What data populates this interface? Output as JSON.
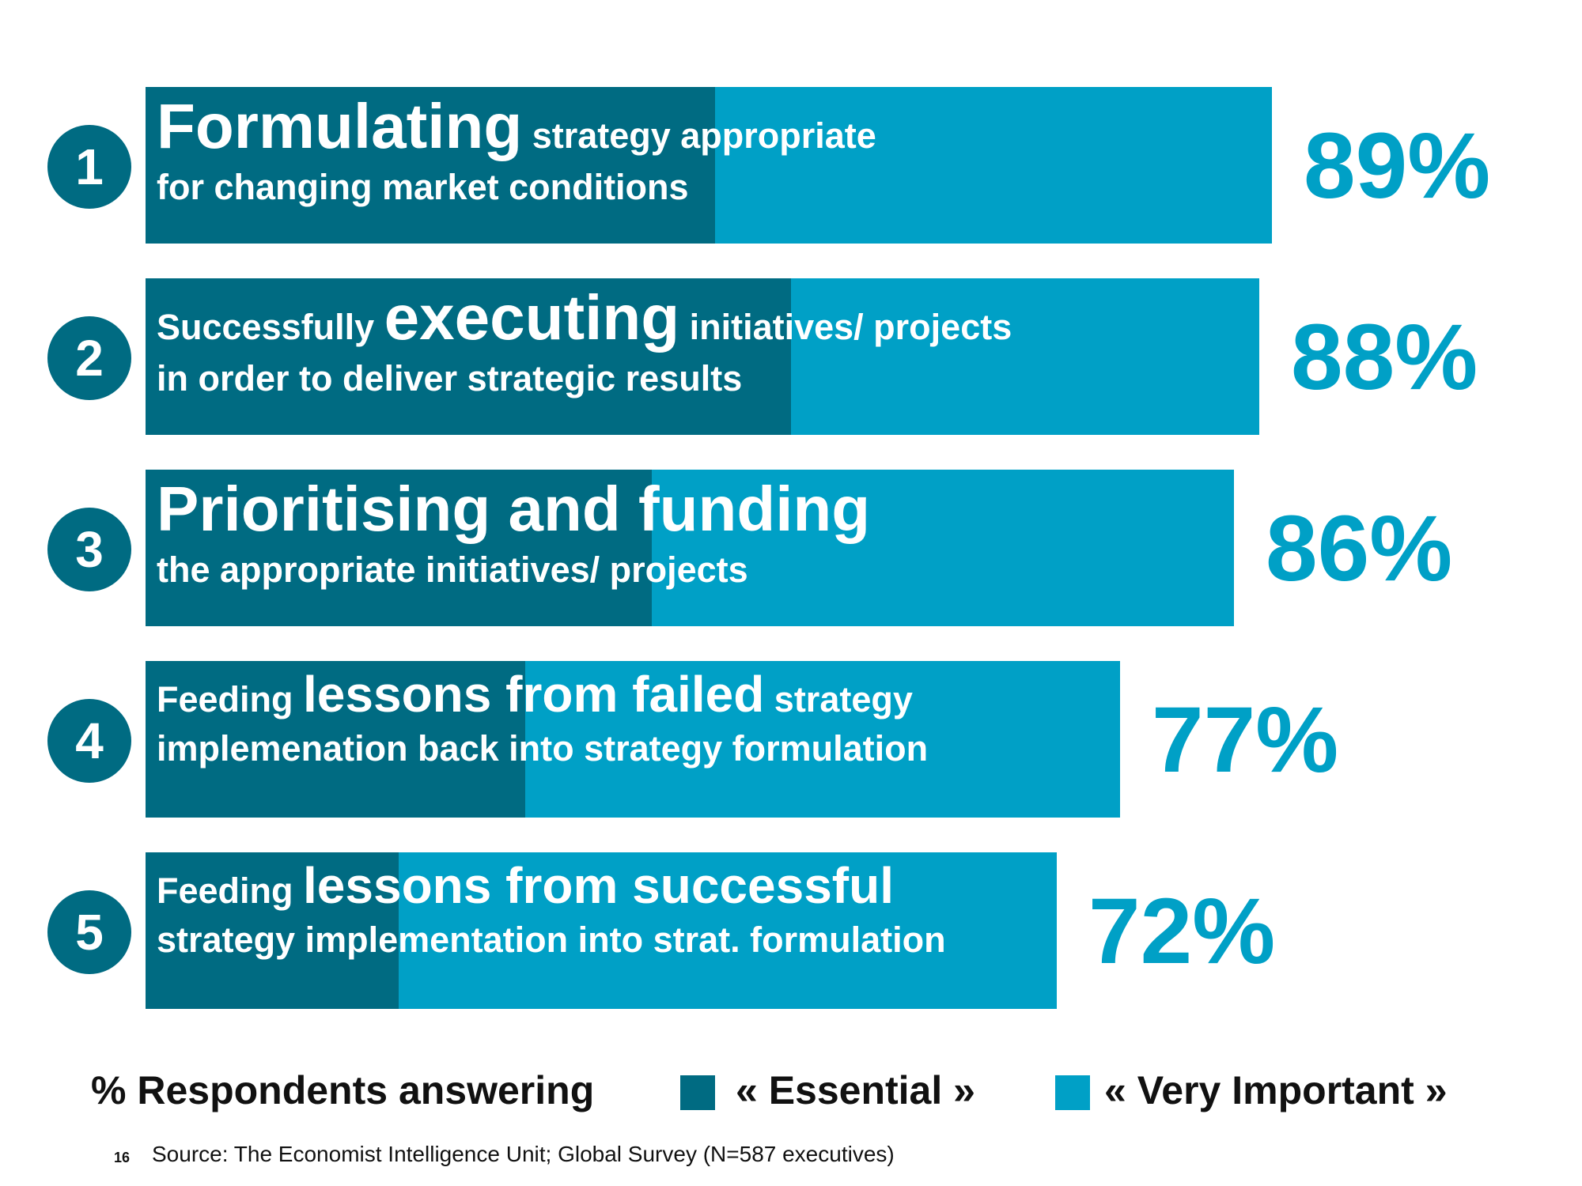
{
  "chart_data": {
    "type": "bar",
    "orientation": "horizontal",
    "categories": [
      "Formulating strategy appropriate for changing market conditions",
      "Successfully executing initiatives/ projects in order to deliver strategic results",
      "Prioritising and funding the appropriate initiatives/ projects",
      "Feeding lessons from failed strategy implemenation back into strategy formulation",
      "Feeding lessons from successful strategy implementation into strat. formulation"
    ],
    "series": [
      {
        "name": "« Essential »",
        "values": [
          45,
          51,
          40,
          30,
          20
        ]
      },
      {
        "name": "« Very Important »",
        "values": [
          44,
          37,
          46,
          47,
          52
        ]
      }
    ],
    "totals": [
      89,
      88,
      86,
      77,
      72
    ],
    "colors": {
      "essential": "#006b82",
      "very_important": "#00a0c6",
      "percent_text": "#00a0c6",
      "circle": "#006b82"
    },
    "xlim": [
      0,
      100
    ],
    "legend_position": "bottom"
  },
  "rows": [
    {
      "number": "1",
      "line1": [
        {
          "text": "Formulating",
          "size": "big"
        },
        {
          "text": " strategy appropriate",
          "size": "small"
        }
      ],
      "line2": [
        {
          "text": "for changing market conditions",
          "size": "small"
        }
      ],
      "percent": "89%"
    },
    {
      "number": "2",
      "line1": [
        {
          "text": "Successfully ",
          "size": "small"
        },
        {
          "text": "executing",
          "size": "big"
        },
        {
          "text": " initiatives/ projects",
          "size": "small"
        }
      ],
      "line2": [
        {
          "text": "in order to deliver strategic results",
          "size": "small"
        }
      ],
      "percent": "88%"
    },
    {
      "number": "3",
      "line1": [
        {
          "text": "Prioritising and funding",
          "size": "big"
        }
      ],
      "line2": [
        {
          "text": "the appropriate initiatives/ projects",
          "size": "small"
        }
      ],
      "percent": "86%"
    },
    {
      "number": "4",
      "line1": [
        {
          "text": "Feeding ",
          "size": "small"
        },
        {
          "text": "lessons from failed",
          "size": "mid"
        },
        {
          "text": " strategy",
          "size": "small"
        }
      ],
      "line2": [
        {
          "text": "implemenation back into strategy formulation",
          "size": "small"
        }
      ],
      "percent": "77%"
    },
    {
      "number": "5",
      "line1": [
        {
          "text": "Feeding ",
          "size": "small"
        },
        {
          "text": "lessons from successful",
          "size": "mid"
        }
      ],
      "line2": [
        {
          "text": "strategy implementation into strat. formulation",
          "size": "small"
        }
      ],
      "percent": "72%"
    }
  ],
  "legend": {
    "label": "% Respondents answering",
    "essential": "« Essential »",
    "very_important": "« Very Important »"
  },
  "footer": {
    "page_number": "16",
    "source": "Source: The Economist Intelligence Unit; Global Survey (N=587 executives)"
  }
}
